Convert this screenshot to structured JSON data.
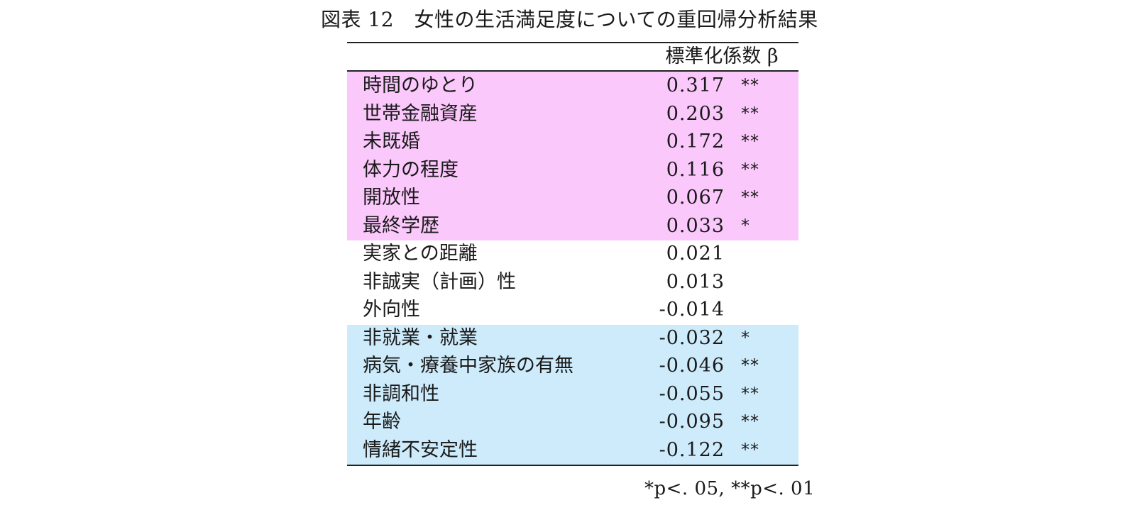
{
  "title": "図表 12　女性の生活満足度についての重回帰分析結果",
  "column_header": "標準化係数 β",
  "colors": {
    "positive_significant_bg": "#fbc8fb",
    "negative_significant_bg": "#cdebfb"
  },
  "rows": [
    {
      "variable": "時間のゆとり",
      "beta": "0.317",
      "sig": "**"
    },
    {
      "variable": "世帯金融資産",
      "beta": "0.203",
      "sig": "**"
    },
    {
      "variable": "未既婚",
      "beta": "0.172",
      "sig": "**"
    },
    {
      "variable": "体力の程度",
      "beta": "0.116",
      "sig": "**"
    },
    {
      "variable": "開放性",
      "beta": "0.067",
      "sig": "**"
    },
    {
      "variable": "最終学歴",
      "beta": "0.033",
      "sig": "*"
    },
    {
      "variable": "実家との距離",
      "beta": "0.021",
      "sig": ""
    },
    {
      "variable": "非誠実（計画）性",
      "beta": "0.013",
      "sig": ""
    },
    {
      "variable": "外向性",
      "beta": "-0.014",
      "sig": ""
    },
    {
      "variable": "非就業・就業",
      "beta": "-0.032",
      "sig": "*"
    },
    {
      "variable": "病気・療養中家族の有無",
      "beta": "-0.046",
      "sig": "**"
    },
    {
      "variable": "非調和性",
      "beta": "-0.055",
      "sig": "**"
    },
    {
      "variable": "年齢",
      "beta": "-0.095",
      "sig": "**"
    },
    {
      "variable": "情緒不安定性",
      "beta": "-0.122",
      "sig": "**"
    }
  ],
  "footnote": "*p<. 05, **p<. 01"
}
